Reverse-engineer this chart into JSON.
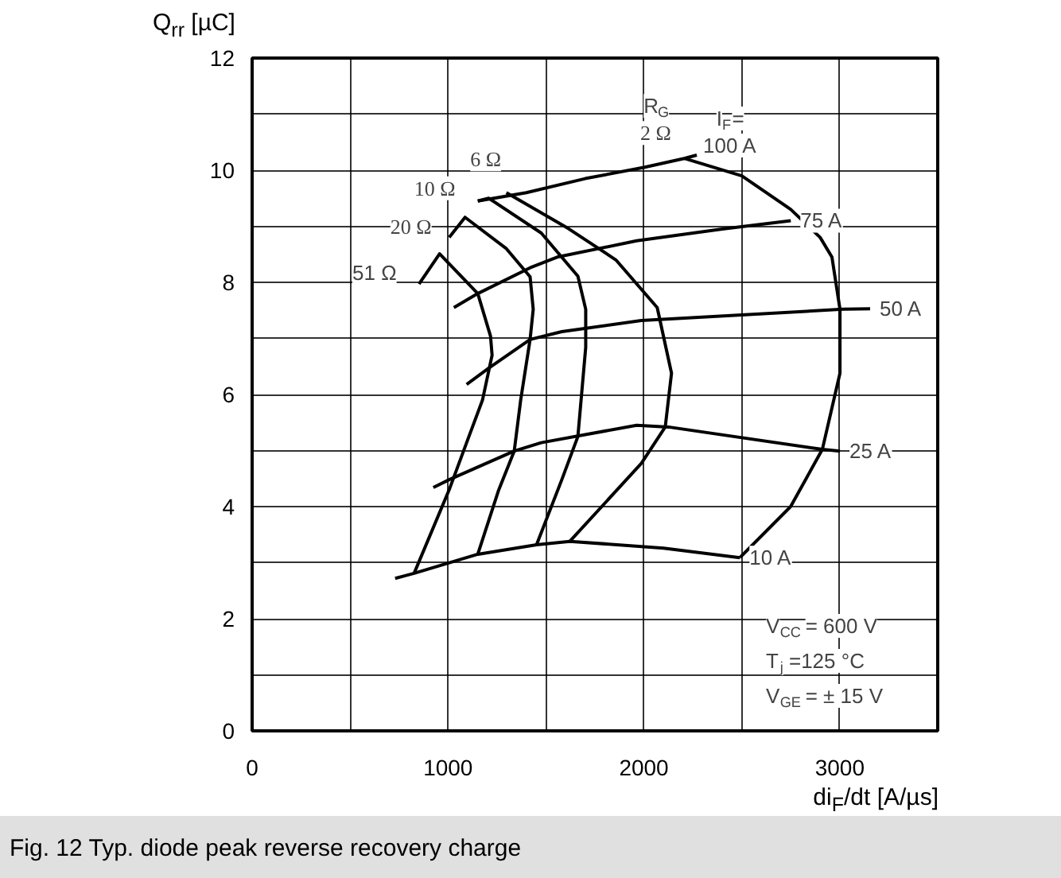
{
  "chart_data": {
    "type": "line",
    "xlabel": "di$_{F}$/dt [A/µs]",
    "ylabel": "Q$_{rr}$ [µC]",
    "xlim": [
      0,
      3500
    ],
    "ylim": [
      0,
      12
    ],
    "xticks": [
      0,
      {
        "value": 500,
        "label": null
      },
      1000,
      {
        "value": 1500,
        "label": null
      },
      2000,
      {
        "value": 2500,
        "label": null
      },
      3000
    ],
    "yticks": [
      0,
      {
        "value": 1,
        "label": null
      },
      2,
      {
        "value": 3,
        "label": null
      },
      4,
      {
        "value": 5,
        "label": null
      },
      6,
      {
        "value": 7,
        "label": null
      },
      8,
      {
        "value": 9,
        "label": null
      },
      10,
      {
        "value": 11,
        "label": null
      },
      12
    ],
    "grid": true,
    "marker": "none",
    "line_style": "solid",
    "series": [
      {
        "name": "100 A",
        "color": "#000000",
        "x": [
          2270,
          2206,
          2000,
          1700,
          1400,
          1152
        ],
        "values": [
          10.27,
          10.21,
          10.05,
          9.85,
          9.6,
          9.45
        ]
      },
      {
        "name": "75 A",
        "color": "#000000",
        "x": [
          2750,
          2400,
          1963,
          1557,
          1419,
          1152,
          1030
        ],
        "values": [
          9.1,
          8.95,
          8.74,
          8.45,
          8.26,
          7.8,
          7.55
        ]
      },
      {
        "name": "50 A",
        "color": "#000000",
        "x": [
          3155,
          3017,
          1987,
          1581,
          1419,
          1208,
          1095
        ],
        "values": [
          7.53,
          7.52,
          7.32,
          7.12,
          6.98,
          6.47,
          6.18
        ]
      },
      {
        "name": "25 A",
        "color": "#000000",
        "x": [
          3001,
          2911,
          2125,
          1963,
          1695,
          1476,
          1338,
          1006,
          925
        ],
        "values": [
          4.99,
          5.02,
          5.42,
          5.45,
          5.28,
          5.14,
          4.99,
          4.48,
          4.34
        ]
      },
      {
        "name": "10 A",
        "color": "#000000",
        "x": [
          2490,
          2100,
          1622,
          1452,
          1152,
          827,
          730
        ],
        "values": [
          3.09,
          3.26,
          3.38,
          3.32,
          3.15,
          2.81,
          2.72
        ]
      },
      {
        "name": "2 Ω",
        "color": "#000000",
        "x": [
          2206,
          2500,
          2750,
          2900,
          2960,
          3001,
          3001,
          2911,
          2749,
          2490
        ],
        "values": [
          10.21,
          9.9,
          9.3,
          8.8,
          8.45,
          7.52,
          6.38,
          5.02,
          4.0,
          3.09
        ]
      },
      {
        "name": "6 Ω",
        "color": "#000000",
        "x": [
          1298,
          1614,
          1857,
          2068,
          2141,
          2109,
          1987,
          1622
        ],
        "values": [
          9.6,
          8.96,
          8.4,
          7.55,
          6.38,
          5.42,
          4.77,
          3.38
        ]
      },
      {
        "name": "10 Ω",
        "color": "#000000",
        "x": [
          1152,
          1208,
          1476,
          1663,
          1703,
          1703,
          1663,
          1581,
          1452
        ],
        "values": [
          9.45,
          9.5,
          8.88,
          8.11,
          7.52,
          6.84,
          5.25,
          4.48,
          3.32
        ]
      },
      {
        "name": "20 Ω",
        "color": "#000000",
        "x": [
          1006,
          1087,
          1298,
          1419,
          1435,
          1419,
          1371,
          1338,
          1257,
          1152
        ],
        "values": [
          8.8,
          9.16,
          8.6,
          8.1,
          7.52,
          6.98,
          5.9,
          4.99,
          4.28,
          3.15
        ]
      },
      {
        "name": "51 Ω",
        "color": "#000000",
        "x": [
          852,
          957,
          1152,
          1217,
          1225,
          1176,
          1095,
          1006,
          827
        ],
        "values": [
          7.97,
          8.51,
          7.8,
          7.04,
          6.7,
          5.9,
          5.14,
          4.3,
          2.81
        ]
      }
    ],
    "annotations": [
      "R$_{G}$",
      "I$_{F}$=",
      "V$_{CC}$ = 600 V\nT$_{j}$ =125 °C\nV$_{GE}$ = ± 15 V",
      "Fig. 12 Typ. diode peak reverse recovery charge"
    ]
  }
}
